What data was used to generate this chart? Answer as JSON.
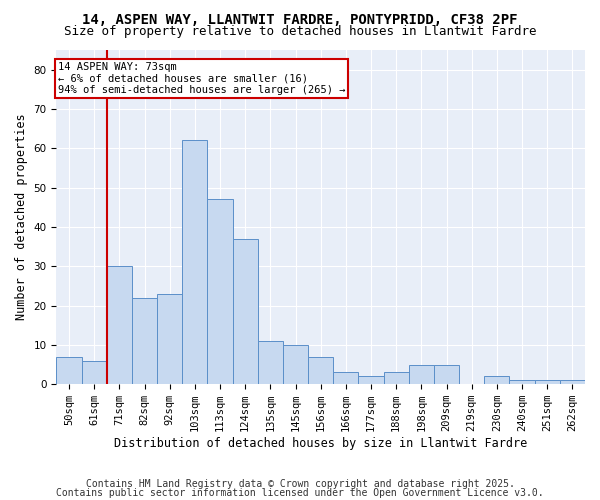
{
  "title1": "14, ASPEN WAY, LLANTWIT FARDRE, PONTYPRIDD, CF38 2PF",
  "title2": "Size of property relative to detached houses in Llantwit Fardre",
  "xlabel": "Distribution of detached houses by size in Llantwit Fardre",
  "ylabel": "Number of detached properties",
  "categories": [
    "50sqm",
    "61sqm",
    "71sqm",
    "82sqm",
    "92sqm",
    "103sqm",
    "113sqm",
    "124sqm",
    "135sqm",
    "145sqm",
    "156sqm",
    "166sqm",
    "177sqm",
    "188sqm",
    "198sqm",
    "209sqm",
    "219sqm",
    "230sqm",
    "240sqm",
    "251sqm",
    "262sqm"
  ],
  "values": [
    7,
    6,
    30,
    22,
    23,
    62,
    47,
    37,
    11,
    10,
    7,
    3,
    2,
    3,
    5,
    5,
    0,
    2,
    1,
    1,
    1
  ],
  "bar_color": "#c7d9f0",
  "bar_edge_color": "#5b8fc9",
  "bar_width": 1.0,
  "vline_color": "#cc0000",
  "annotation_text": "14 ASPEN WAY: 73sqm\n← 6% of detached houses are smaller (16)\n94% of semi-detached houses are larger (265) →",
  "annotation_box_color": "#cc0000",
  "annotation_text_color": "#000000",
  "ylim": [
    0,
    85
  ],
  "yticks": [
    0,
    10,
    20,
    30,
    40,
    50,
    60,
    70,
    80
  ],
  "background_color": "#e8eef8",
  "grid_color": "#ffffff",
  "footer1": "Contains HM Land Registry data © Crown copyright and database right 2025.",
  "footer2": "Contains public sector information licensed under the Open Government Licence v3.0.",
  "title_fontsize": 10,
  "subtitle_fontsize": 9,
  "xlabel_fontsize": 8.5,
  "ylabel_fontsize": 8.5,
  "tick_fontsize": 7.5,
  "footer_fontsize": 7,
  "annot_fontsize": 7.5
}
